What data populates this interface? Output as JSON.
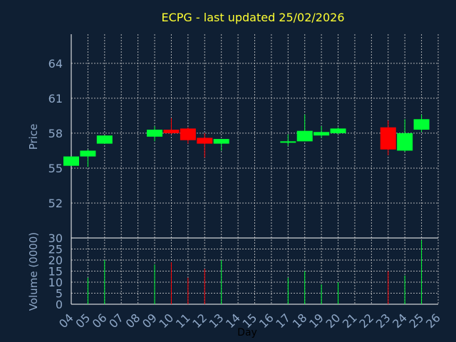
{
  "chart_data": {
    "type": "candlestick",
    "title": "ECPG - last updated 25/02/2026",
    "xlabel": "Day",
    "price_panel": {
      "ylabel": "Price",
      "ylim": [
        49,
        66.5
      ],
      "yticks": [
        52,
        55,
        58,
        61,
        64
      ],
      "candles": [
        {
          "day": "04",
          "open": 55.2,
          "high": 56.0,
          "low": 55.2,
          "close": 56.0
        },
        {
          "day": "05",
          "open": 56.0,
          "high": 56.6,
          "low": 55.1,
          "close": 56.5
        },
        {
          "day": "06",
          "open": 57.1,
          "high": 57.8,
          "low": 57.1,
          "close": 57.8
        },
        {
          "day": "09",
          "open": 57.7,
          "high": 58.6,
          "low": 57.3,
          "close": 58.3
        },
        {
          "day": "10",
          "open": 58.3,
          "high": 59.3,
          "low": 57.9,
          "close": 58.0
        },
        {
          "day": "11",
          "open": 58.4,
          "high": 58.5,
          "low": 57.1,
          "close": 57.4
        },
        {
          "day": "12",
          "open": 57.6,
          "high": 58.0,
          "low": 55.9,
          "close": 57.1
        },
        {
          "day": "13",
          "open": 57.1,
          "high": 57.5,
          "low": 56.5,
          "close": 57.5
        },
        {
          "day": "17",
          "open": 57.2,
          "high": 57.9,
          "low": 56.9,
          "close": 57.3
        },
        {
          "day": "18",
          "open": 57.3,
          "high": 59.6,
          "low": 57.3,
          "close": 58.2
        },
        {
          "day": "19",
          "open": 57.8,
          "high": 58.6,
          "low": 57.6,
          "close": 58.1
        },
        {
          "day": "20",
          "open": 58.0,
          "high": 58.5,
          "low": 57.9,
          "close": 58.4
        },
        {
          "day": "23",
          "open": 58.5,
          "high": 59.1,
          "low": 56.1,
          "close": 56.6
        },
        {
          "day": "24",
          "open": 56.5,
          "high": 59.2,
          "low": 56.4,
          "close": 58.0
        },
        {
          "day": "25",
          "open": 58.3,
          "high": 59.6,
          "low": 58.1,
          "close": 59.2
        }
      ]
    },
    "volume_panel": {
      "ylabel": "Volume (0000)",
      "ylim": [
        0,
        30
      ],
      "yticks": [
        0,
        5,
        10,
        15,
        20,
        25,
        30
      ],
      "bars": [
        {
          "day": "05",
          "value": 12,
          "direction": "up"
        },
        {
          "day": "06",
          "value": 20,
          "direction": "up"
        },
        {
          "day": "09",
          "value": 18,
          "direction": "up"
        },
        {
          "day": "10",
          "value": 19,
          "direction": "down"
        },
        {
          "day": "11",
          "value": 12,
          "direction": "down"
        },
        {
          "day": "12",
          "value": 16,
          "direction": "down"
        },
        {
          "day": "13",
          "value": 20,
          "direction": "up"
        },
        {
          "day": "17",
          "value": 12,
          "direction": "up"
        },
        {
          "day": "18",
          "value": 15,
          "direction": "up"
        },
        {
          "day": "19",
          "value": 9,
          "direction": "up"
        },
        {
          "day": "20",
          "value": 10,
          "direction": "up"
        },
        {
          "day": "23",
          "value": 15,
          "direction": "down"
        },
        {
          "day": "24",
          "value": 13,
          "direction": "up"
        },
        {
          "day": "25",
          "value": 29,
          "direction": "up"
        }
      ]
    },
    "x_ticks": [
      "04",
      "05",
      "06",
      "07",
      "08",
      "09",
      "10",
      "11",
      "12",
      "13",
      "14",
      "15",
      "16",
      "17",
      "18",
      "19",
      "20",
      "21",
      "22",
      "23",
      "24",
      "25",
      "26"
    ],
    "grid": true,
    "colors": {
      "background": "#0f1f33",
      "up": "#00ff33",
      "down": "#ff0000",
      "title": "#ffff33",
      "axis_text": "#8fa8c8",
      "grid": "#c8c8c8",
      "axis_line": "#ffffff"
    }
  }
}
